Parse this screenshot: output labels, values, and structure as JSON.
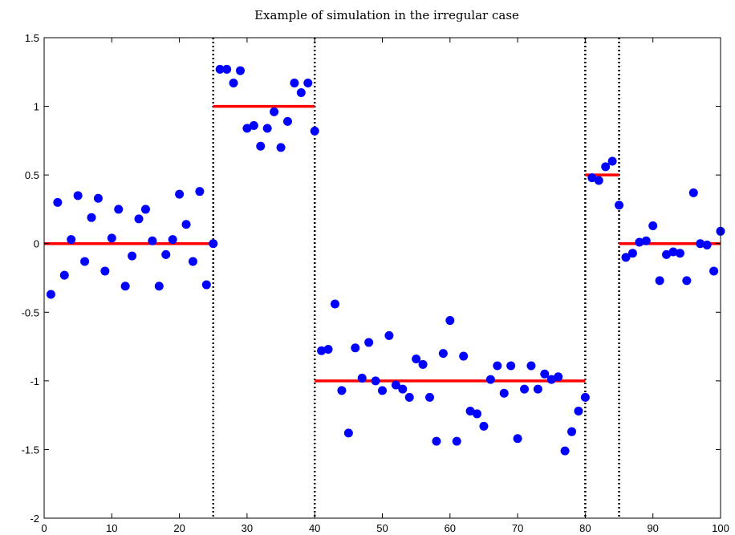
{
  "chart_data": {
    "type": "scatter",
    "title": "Example of simulation in the irregular case",
    "xlabel": "",
    "ylabel": "",
    "xlim": [
      0,
      100
    ],
    "ylim": [
      -2,
      1.5
    ],
    "xticks": [
      "0",
      "10",
      "20",
      "30",
      "40",
      "50",
      "60",
      "70",
      "80",
      "90",
      "100"
    ],
    "yticks": [
      "1.5",
      "1",
      "0.5",
      "0",
      "-0.5",
      "-1",
      "-1.5",
      "-2"
    ],
    "grid": false,
    "legend": "none",
    "colors": {
      "points": "#0000ff",
      "segments": "#ff0000",
      "changepoints": "#000000"
    },
    "series": [
      {
        "kind": "points",
        "x": [
          1,
          2,
          3,
          4,
          5,
          6,
          7,
          8,
          9,
          10,
          11,
          12,
          13,
          14,
          15,
          16,
          17,
          18,
          19,
          20,
          21,
          22,
          23,
          24,
          25,
          26,
          27,
          28,
          29,
          30,
          31,
          32,
          33,
          34,
          35,
          36,
          37,
          38,
          39,
          40,
          41,
          42,
          43,
          44,
          45,
          46,
          47,
          48,
          49,
          50,
          51,
          52,
          53,
          54,
          55,
          56,
          57,
          58,
          59,
          60,
          61,
          62,
          63,
          64,
          65,
          66,
          67,
          68,
          69,
          70,
          71,
          72,
          73,
          74,
          75,
          76,
          77,
          78,
          79,
          80,
          81,
          82,
          83,
          84,
          85,
          86,
          87,
          88,
          89,
          90,
          91,
          92,
          93,
          94,
          95,
          96,
          97,
          98,
          99,
          100
        ],
        "y": [
          -0.37,
          0.3,
          -0.23,
          0.03,
          0.35,
          -0.13,
          0.19,
          0.33,
          -0.2,
          0.04,
          0.25,
          -0.31,
          -0.09,
          0.18,
          0.25,
          0.02,
          -0.31,
          -0.08,
          0.03,
          0.36,
          0.14,
          -0.13,
          0.38,
          -0.3,
          0.0,
          1.27,
          1.27,
          1.17,
          1.26,
          0.84,
          0.86,
          0.71,
          0.84,
          0.96,
          0.7,
          0.89,
          1.17,
          1.1,
          1.17,
          0.82,
          -0.78,
          -0.77,
          -0.44,
          -1.07,
          -1.38,
          -0.76,
          -0.98,
          -0.72,
          -1.0,
          -1.07,
          -0.67,
          -1.03,
          -1.06,
          -1.12,
          -0.84,
          -0.88,
          -1.12,
          -1.44,
          -0.8,
          -0.56,
          -1.44,
          -0.82,
          -1.22,
          -1.24,
          -1.33,
          -0.99,
          -0.89,
          -1.09,
          -0.89,
          -1.42,
          -1.06,
          -0.89,
          -1.06,
          -0.95,
          -0.99,
          -0.97,
          -1.51,
          -1.37,
          -1.22,
          -1.12,
          0.48,
          0.46,
          0.56,
          0.6,
          0.28,
          -0.1,
          -0.07,
          0.01,
          0.02,
          0.13,
          -0.27,
          -0.08,
          -0.06,
          -0.07,
          -0.27,
          0.37,
          0.0,
          -0.01,
          -0.2,
          0.09
        ]
      },
      {
        "kind": "segments",
        "segments": [
          {
            "x0": 0,
            "x1": 25,
            "y": 0
          },
          {
            "x0": 25,
            "x1": 40,
            "y": 1
          },
          {
            "x0": 40,
            "x1": 80,
            "y": -1
          },
          {
            "x0": 80,
            "x1": 85,
            "y": 0.5
          },
          {
            "x0": 85,
            "x1": 100,
            "y": 0
          }
        ]
      },
      {
        "kind": "changepoints",
        "x": [
          25,
          40,
          80,
          85
        ]
      }
    ]
  }
}
